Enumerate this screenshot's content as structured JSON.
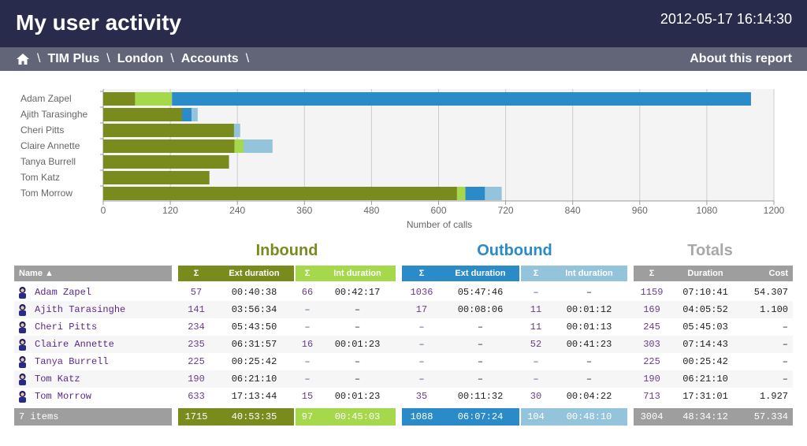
{
  "header": {
    "title": "My user activity",
    "datetime": "2012-05-17 16:14:30"
  },
  "breadcrumb": {
    "items": [
      "TIM Plus",
      "London",
      "Accounts"
    ],
    "separator": "\\",
    "about_label": "About this report"
  },
  "colors": {
    "header_bg": "#282b4b",
    "crumb_bg": "#626478",
    "inbound_ext": "#7a8b1e",
    "inbound_int": "#a6d84b",
    "outbound_ext": "#2a8bc8",
    "outbound_int": "#93c4dc",
    "totals": "#9e9e9e",
    "name_header": "#9e9e9e"
  },
  "chart_data": {
    "type": "bar",
    "orientation": "horizontal",
    "stacked": true,
    "xlabel": "Number of calls",
    "xlim": [
      0,
      1200
    ],
    "xticks": [
      0,
      120,
      240,
      360,
      480,
      600,
      720,
      840,
      960,
      1080,
      1200
    ],
    "categories": [
      "Adam Zapel",
      "Ajith Tarasinghe",
      "Cheri Pitts",
      "Claire Annette",
      "Tanya Burrell",
      "Tom Katz",
      "Tom Morrow"
    ],
    "series": [
      {
        "values": [
          57,
          141,
          234,
          235,
          225,
          190,
          633
        ],
        "color": "#7a8b1e"
      },
      {
        "values": [
          66,
          0,
          0,
          16,
          0,
          0,
          15
        ],
        "color": "#a6d84b"
      },
      {
        "values": [
          1036,
          17,
          0,
          0,
          0,
          0,
          35
        ],
        "color": "#2a8bc8"
      },
      {
        "values": [
          0,
          11,
          11,
          52,
          0,
          0,
          30
        ],
        "color": "#93c4dc"
      }
    ]
  },
  "sections": {
    "inbound": "Inbound",
    "outbound": "Outbound",
    "totals": "Totals"
  },
  "columns": {
    "name": "Name ▲",
    "sigma": "Σ",
    "ext_duration": "Ext duration",
    "int_duration": "Int duration",
    "duration": "Duration",
    "cost": "Cost"
  },
  "rows": [
    {
      "name": "Adam Zapel",
      "in_ext_n": "57",
      "in_ext_d": "00:40:38",
      "in_int_n": "66",
      "in_int_d": "00:42:17",
      "out_ext_n": "1036",
      "out_ext_d": "05:47:46",
      "out_int_n": "–",
      "out_int_d": "–",
      "tot_n": "1159",
      "tot_d": "07:10:41",
      "cost": "54.307"
    },
    {
      "name": "Ajith Tarasinghe",
      "in_ext_n": "141",
      "in_ext_d": "03:56:34",
      "in_int_n": "–",
      "in_int_d": "–",
      "out_ext_n": "17",
      "out_ext_d": "00:08:06",
      "out_int_n": "11",
      "out_int_d": "00:01:12",
      "tot_n": "169",
      "tot_d": "04:05:52",
      "cost": "1.100"
    },
    {
      "name": "Cheri Pitts",
      "in_ext_n": "234",
      "in_ext_d": "05:43:50",
      "in_int_n": "–",
      "in_int_d": "–",
      "out_ext_n": "–",
      "out_ext_d": "–",
      "out_int_n": "11",
      "out_int_d": "00:01:13",
      "tot_n": "245",
      "tot_d": "05:45:03",
      "cost": "–"
    },
    {
      "name": "Claire Annette",
      "in_ext_n": "235",
      "in_ext_d": "06:31:57",
      "in_int_n": "16",
      "in_int_d": "00:01:23",
      "out_ext_n": "–",
      "out_ext_d": "–",
      "out_int_n": "52",
      "out_int_d": "00:41:23",
      "tot_n": "303",
      "tot_d": "07:14:43",
      "cost": "–"
    },
    {
      "name": "Tanya Burrell",
      "in_ext_n": "225",
      "in_ext_d": "00:25:42",
      "in_int_n": "–",
      "in_int_d": "–",
      "out_ext_n": "–",
      "out_ext_d": "–",
      "out_int_n": "–",
      "out_int_d": "–",
      "tot_n": "225",
      "tot_d": "00:25:42",
      "cost": "–"
    },
    {
      "name": "Tom Katz",
      "in_ext_n": "190",
      "in_ext_d": "06:21:10",
      "in_int_n": "–",
      "in_int_d": "–",
      "out_ext_n": "–",
      "out_ext_d": "–",
      "out_int_n": "–",
      "out_int_d": "–",
      "tot_n": "190",
      "tot_d": "06:21:10",
      "cost": "–"
    },
    {
      "name": "Tom Morrow",
      "in_ext_n": "633",
      "in_ext_d": "17:13:44",
      "in_int_n": "15",
      "in_int_d": "00:01:23",
      "out_ext_n": "35",
      "out_ext_d": "00:11:32",
      "out_int_n": "30",
      "out_int_d": "00:04:22",
      "tot_n": "713",
      "tot_d": "17:31:01",
      "cost": "1.927"
    }
  ],
  "footer": {
    "count": "7 items",
    "in_ext_n": "1715",
    "in_ext_d": "40:53:35",
    "in_int_n": "97",
    "in_int_d": "00:45:03",
    "out_ext_n": "1088",
    "out_ext_d": "06:07:24",
    "out_int_n": "104",
    "out_int_d": "00:48:10",
    "tot_n": "3004",
    "tot_d": "48:34:12",
    "cost": "57.334"
  }
}
